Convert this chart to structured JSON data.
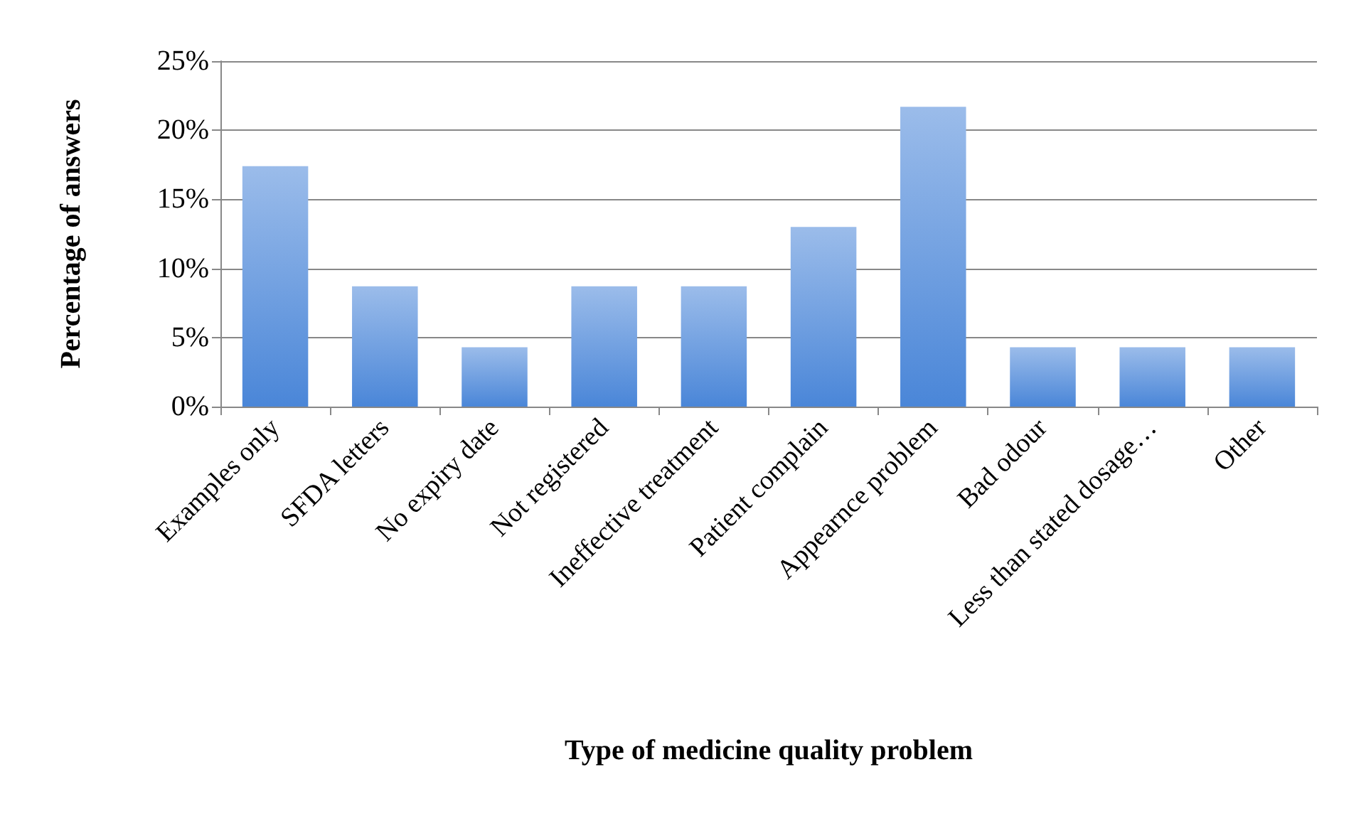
{
  "chart_data": {
    "type": "bar",
    "xlabel": "Type of medicine quality problem",
    "ylabel": "Percentage of answers",
    "categories": [
      "Examples only",
      "SFDA letters",
      "No expiry date",
      "Not registered",
      "Ineffective treatment",
      "Patient complain",
      "Appearnce problem",
      "Bad odour",
      "Less than stated dosage…",
      "Other"
    ],
    "values": [
      17.4,
      8.7,
      4.3,
      8.7,
      8.7,
      13.0,
      21.7,
      4.3,
      4.3,
      4.3
    ],
    "color": "#4a86d8",
    "ylim": [
      0,
      25
    ],
    "yticks": [
      {
        "value": 0,
        "label": "0%"
      },
      {
        "value": 5,
        "label": "5%"
      },
      {
        "value": 10,
        "label": "10%"
      },
      {
        "value": 15,
        "label": "15%"
      },
      {
        "value": 20,
        "label": "20%"
      },
      {
        "value": 25,
        "label": "25%"
      }
    ],
    "grid": "y"
  }
}
